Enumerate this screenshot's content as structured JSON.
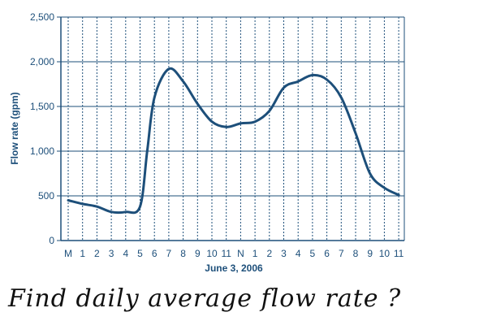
{
  "chart_data": {
    "type": "line",
    "ylabel": "Flow rate (gpm)",
    "xlabel": "June 3, 2006",
    "ylim": [
      0,
      2500
    ],
    "yticks": [
      0,
      500,
      1000,
      1500,
      2000,
      2500
    ],
    "ytick_labels": [
      "0",
      "500",
      "1,000",
      "1,500",
      "2,000",
      "2,500"
    ],
    "categories": [
      "M",
      "1",
      "2",
      "3",
      "4",
      "5",
      "6",
      "7",
      "8",
      "9",
      "10",
      "11",
      "N",
      "1",
      "2",
      "3",
      "4",
      "5",
      "6",
      "7",
      "8",
      "9",
      "10",
      "11"
    ],
    "grid": {
      "vertical": "dashed",
      "horizontal": "solid"
    },
    "series": [
      {
        "x": [
          0,
          1,
          2,
          3,
          4,
          5,
          5.5,
          6,
          7,
          8,
          9,
          10,
          11,
          12,
          13,
          14,
          15,
          16,
          17,
          18,
          19,
          20,
          21,
          22,
          23
        ],
        "values": [
          450,
          410,
          380,
          320,
          320,
          380,
          1000,
          1600,
          1920,
          1780,
          1530,
          1330,
          1270,
          1310,
          1330,
          1450,
          1710,
          1780,
          1850,
          1800,
          1600,
          1200,
          750,
          590,
          510
        ],
        "color": "#1d4f7a"
      }
    ]
  },
  "annotation": {
    "handwritten_question": "Find daily average flow rate ?"
  }
}
